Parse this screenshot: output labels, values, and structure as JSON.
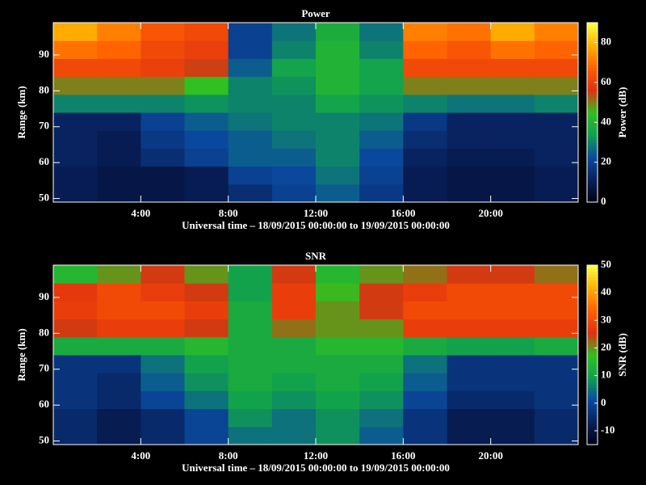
{
  "chart_data": [
    {
      "type": "heatmap",
      "title": "Power",
      "xlabel": "Universal time – 18/09/2015 00:00:00 to 19/09/2015 00:00:00",
      "ylabel": "Range (km)",
      "colorbar_label": "Power (dB)",
      "xbins": [
        0,
        2,
        4,
        6,
        8,
        10,
        12,
        14,
        16,
        18,
        20,
        22,
        24
      ],
      "ybins": [
        49,
        54,
        59,
        64,
        69,
        74,
        79,
        84,
        89,
        94,
        99
      ],
      "z": [
        [
          10,
          8,
          8,
          10,
          15,
          20,
          25,
          18,
          10,
          8,
          8,
          10
        ],
        [
          10,
          8,
          8,
          10,
          20,
          22,
          28,
          20,
          10,
          8,
          8,
          10
        ],
        [
          12,
          10,
          15,
          20,
          25,
          25,
          30,
          22,
          12,
          10,
          10,
          12
        ],
        [
          12,
          10,
          18,
          22,
          25,
          28,
          30,
          25,
          15,
          12,
          12,
          12
        ],
        [
          12,
          12,
          20,
          25,
          28,
          30,
          30,
          28,
          18,
          12,
          12,
          12
        ],
        [
          30,
          30,
          30,
          32,
          30,
          30,
          35,
          32,
          30,
          28,
          28,
          30
        ],
        [
          50,
          50,
          50,
          45,
          30,
          32,
          40,
          35,
          50,
          50,
          50,
          50
        ],
        [
          62,
          62,
          60,
          55,
          25,
          35,
          40,
          35,
          62,
          62,
          62,
          62
        ],
        [
          70,
          68,
          62,
          60,
          20,
          30,
          40,
          30,
          68,
          65,
          70,
          68
        ],
        [
          78,
          72,
          65,
          62,
          20,
          28,
          38,
          28,
          72,
          70,
          78,
          72
        ]
      ],
      "xlim": [
        0,
        24
      ],
      "ylim": [
        49,
        99
      ],
      "xticks": [
        {
          "value": 4,
          "label": "4:00"
        },
        {
          "value": 8,
          "label": "8:00"
        },
        {
          "value": 12,
          "label": "12:00"
        },
        {
          "value": 16,
          "label": "16:00"
        },
        {
          "value": 20,
          "label": "20:00"
        }
      ],
      "yticks": [
        50,
        60,
        70,
        80,
        90
      ],
      "clim": [
        0,
        90
      ],
      "cticks": [
        0,
        20,
        40,
        60,
        80
      ],
      "colormap": [
        "#000018",
        "#08205a",
        "#0a4aa0",
        "#10a050",
        "#30c020",
        "#e03010",
        "#ff6000",
        "#ffb000",
        "#ffff40"
      ]
    },
    {
      "type": "heatmap",
      "title": "SNR",
      "xlabel": "Universal time – 18/09/2015 00:00:00 to 19/09/2015 00:00:00",
      "ylabel": "Range (km)",
      "colorbar_label": "SNR (dB)",
      "xbins": [
        0,
        2,
        4,
        6,
        8,
        10,
        12,
        14,
        16,
        18,
        20,
        22,
        24
      ],
      "ybins": [
        49,
        54,
        59,
        64,
        69,
        74,
        79,
        84,
        89,
        94,
        99
      ],
      "z": [
        [
          -5,
          -8,
          -5,
          0,
          5,
          5,
          8,
          3,
          -3,
          -8,
          -8,
          -5
        ],
        [
          -5,
          -8,
          -5,
          0,
          8,
          5,
          8,
          5,
          -3,
          -8,
          -8,
          -5
        ],
        [
          -3,
          -5,
          0,
          5,
          10,
          8,
          10,
          8,
          0,
          -5,
          -5,
          -3
        ],
        [
          -3,
          -5,
          3,
          8,
          12,
          10,
          12,
          10,
          3,
          -3,
          -3,
          -3
        ],
        [
          -3,
          -3,
          5,
          10,
          12,
          12,
          12,
          12,
          5,
          -3,
          -3,
          -3
        ],
        [
          12,
          12,
          12,
          15,
          12,
          12,
          15,
          15,
          12,
          10,
          10,
          12
        ],
        [
          25,
          28,
          28,
          25,
          12,
          22,
          20,
          20,
          28,
          28,
          28,
          28
        ],
        [
          28,
          30,
          30,
          28,
          12,
          28,
          20,
          25,
          30,
          30,
          30,
          30
        ],
        [
          27,
          30,
          28,
          25,
          10,
          28,
          18,
          25,
          28,
          30,
          30,
          30
        ],
        [
          15,
          20,
          25,
          20,
          10,
          25,
          15,
          20,
          22,
          25,
          25,
          22
        ]
      ],
      "xlim": [
        0,
        24
      ],
      "ylim": [
        49,
        99
      ],
      "xticks": [
        {
          "value": 4,
          "label": "4:00"
        },
        {
          "value": 8,
          "label": "8:00"
        },
        {
          "value": 12,
          "label": "12:00"
        },
        {
          "value": 16,
          "label": "16:00"
        },
        {
          "value": 20,
          "label": "20:00"
        }
      ],
      "yticks": [
        50,
        60,
        70,
        80,
        90
      ],
      "clim": [
        -15,
        50
      ],
      "cticks": [
        -10,
        0,
        10,
        20,
        30,
        40,
        50
      ],
      "colormap": [
        "#000018",
        "#08205a",
        "#0a4aa0",
        "#10a050",
        "#30c020",
        "#e03010",
        "#ff6000",
        "#ffb000",
        "#ffff40"
      ]
    }
  ]
}
